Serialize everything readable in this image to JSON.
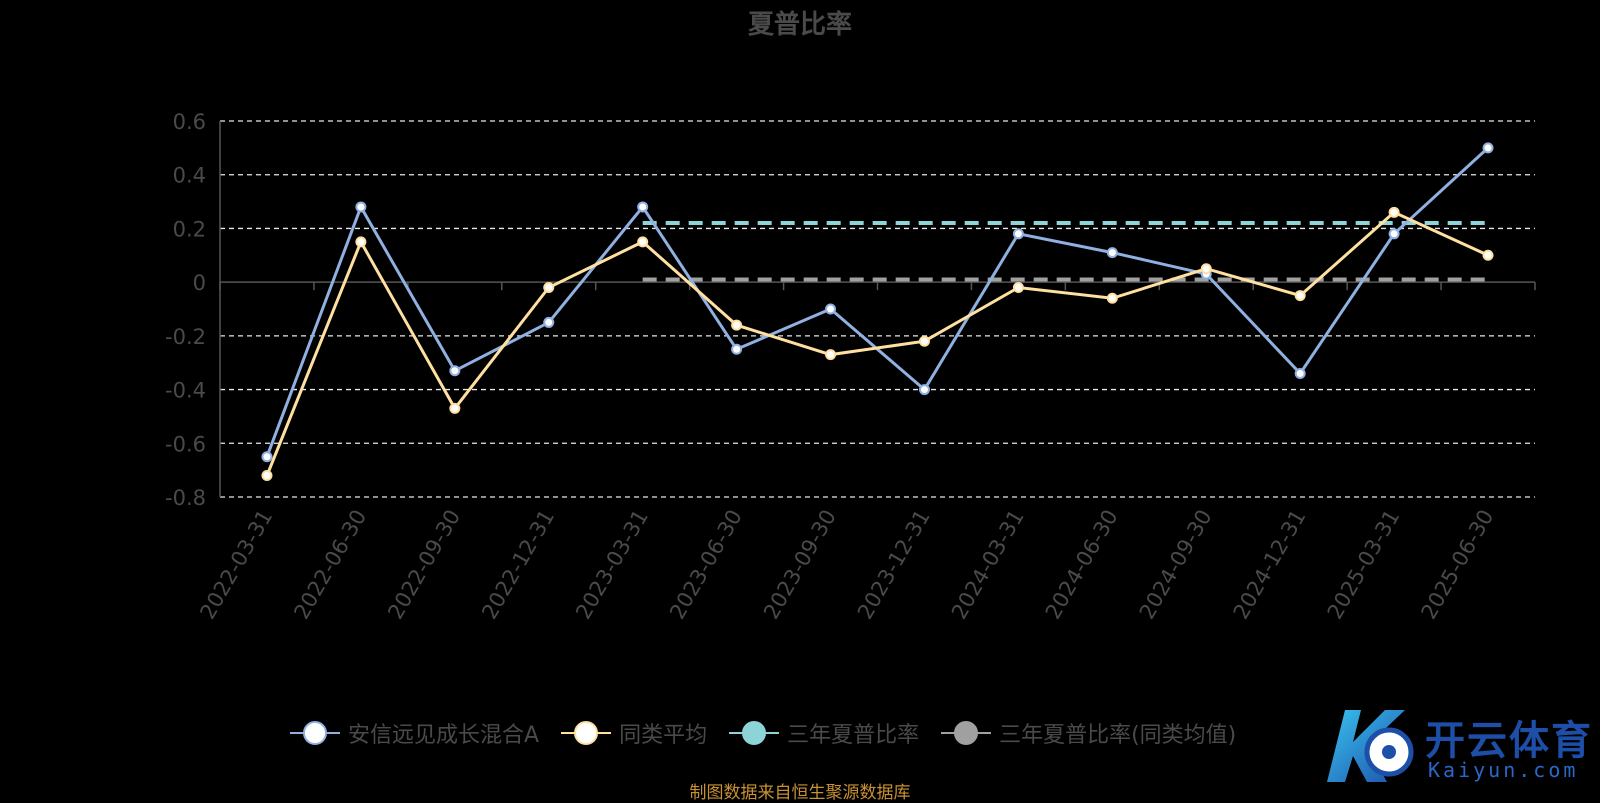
{
  "chart_data": {
    "type": "line",
    "title": "夏普比率",
    "categories": [
      "2022-03-31",
      "2022-06-30",
      "2022-09-30",
      "2022-12-31",
      "2023-03-31",
      "2023-06-30",
      "2023-09-30",
      "2023-12-31",
      "2024-03-31",
      "2024-06-30",
      "2024-09-30",
      "2024-12-31",
      "2025-03-31",
      "2025-06-30"
    ],
    "ylim": [
      -0.8,
      0.6
    ],
    "yticks": [
      "0.6",
      "0.4",
      "0.2",
      "0",
      "-0.2",
      "-0.4",
      "-0.6",
      "-0.8"
    ],
    "grid": true,
    "legend_position": "bottom",
    "series": [
      {
        "name": "安信远见成长混合A",
        "color": "#8fb0e0",
        "values": [
          -0.65,
          0.28,
          -0.33,
          -0.15,
          0.28,
          -0.25,
          -0.1,
          -0.4,
          0.18,
          0.11,
          0.03,
          -0.34,
          0.18,
          0.5
        ]
      },
      {
        "name": "同类平均",
        "color": "#ffe0a0",
        "values": [
          -0.72,
          0.15,
          -0.47,
          -0.02,
          0.15,
          -0.16,
          -0.27,
          -0.22,
          -0.02,
          -0.06,
          0.05,
          -0.05,
          0.26,
          0.1
        ]
      },
      {
        "name": "三年夏普比率",
        "color": "#8dd4d8",
        "dashed": true,
        "value": 0.22,
        "from_index": 4
      },
      {
        "name": "三年夏普比率(同类均值)",
        "color": "#a0a0a0",
        "dashed": true,
        "value": 0.01,
        "from_index": 4
      }
    ]
  },
  "source": "制图数据来自恒生聚源数据库",
  "logo": {
    "main": "开云体育",
    "sub": "Kaiyun.com"
  }
}
